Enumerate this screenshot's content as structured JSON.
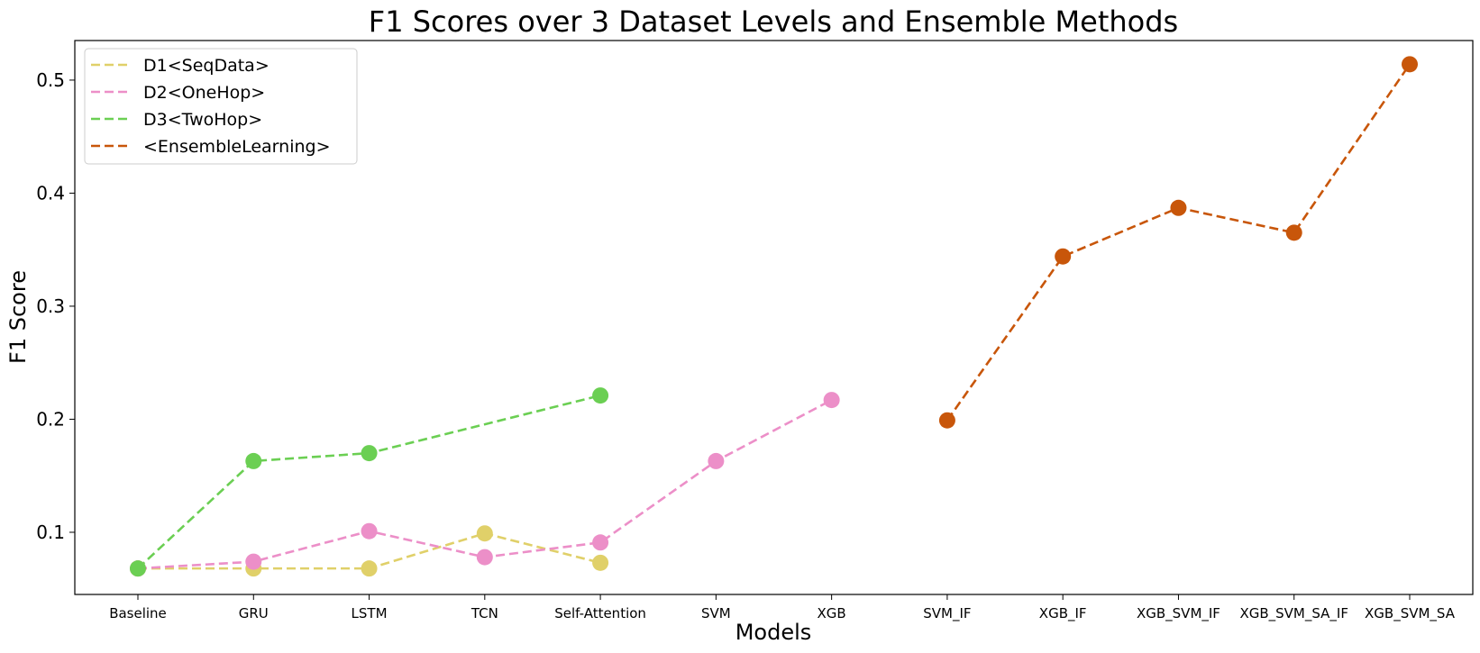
{
  "chart_data": {
    "type": "line",
    "title": "F1 Scores over 3 Dataset Levels and Ensemble Methods",
    "xlabel": "Models",
    "ylabel": "F1 Score",
    "ylim": [
      0.045,
      0.535
    ],
    "yticks": [
      0.1,
      0.2,
      0.3,
      0.4,
      0.5
    ],
    "ytick_labels": [
      "0.1",
      "0.2",
      "0.3",
      "0.4",
      "0.5"
    ],
    "grid": false,
    "legend_position": "top-left",
    "categories": [
      "Baseline",
      "GRU",
      "LSTM",
      "TCN",
      "Self-Attention",
      "SVM",
      "XGB",
      "SVM_IF",
      "XGB_IF",
      "XGB_SVM_IF",
      "XGB_SVM_SA_IF",
      "XGB_SVM_SA"
    ],
    "series": [
      {
        "name": "D1<SeqData>",
        "color": "#e0d069",
        "points": [
          [
            "Baseline",
            0.068
          ],
          [
            "GRU",
            0.068
          ],
          [
            "LSTM",
            0.068
          ],
          [
            "TCN",
            0.099
          ],
          [
            "Self-Attention",
            0.073
          ]
        ]
      },
      {
        "name": "D2<OneHop>",
        "color": "#ec8fc8",
        "points": [
          [
            "Baseline",
            0.068
          ],
          [
            "GRU",
            0.074
          ],
          [
            "LSTM",
            0.101
          ],
          [
            "TCN",
            0.078
          ],
          [
            "Self-Attention",
            0.091
          ],
          [
            "SVM",
            0.163
          ],
          [
            "XGB",
            0.217
          ]
        ]
      },
      {
        "name": "D3<TwoHop>",
        "color": "#6bcf53",
        "points": [
          [
            "Baseline",
            0.068
          ],
          [
            "GRU",
            0.163
          ],
          [
            "LSTM",
            0.17
          ],
          [
            "Self-Attention",
            0.221
          ]
        ]
      },
      {
        "name": "<EnsembleLearning>",
        "color": "#c8560a",
        "points": [
          [
            "SVM_IF",
            0.199
          ],
          [
            "XGB_IF",
            0.344
          ],
          [
            "XGB_SVM_IF",
            0.387
          ],
          [
            "XGB_SVM_SA_IF",
            0.365
          ],
          [
            "XGB_SVM_SA",
            0.514
          ]
        ]
      }
    ]
  }
}
